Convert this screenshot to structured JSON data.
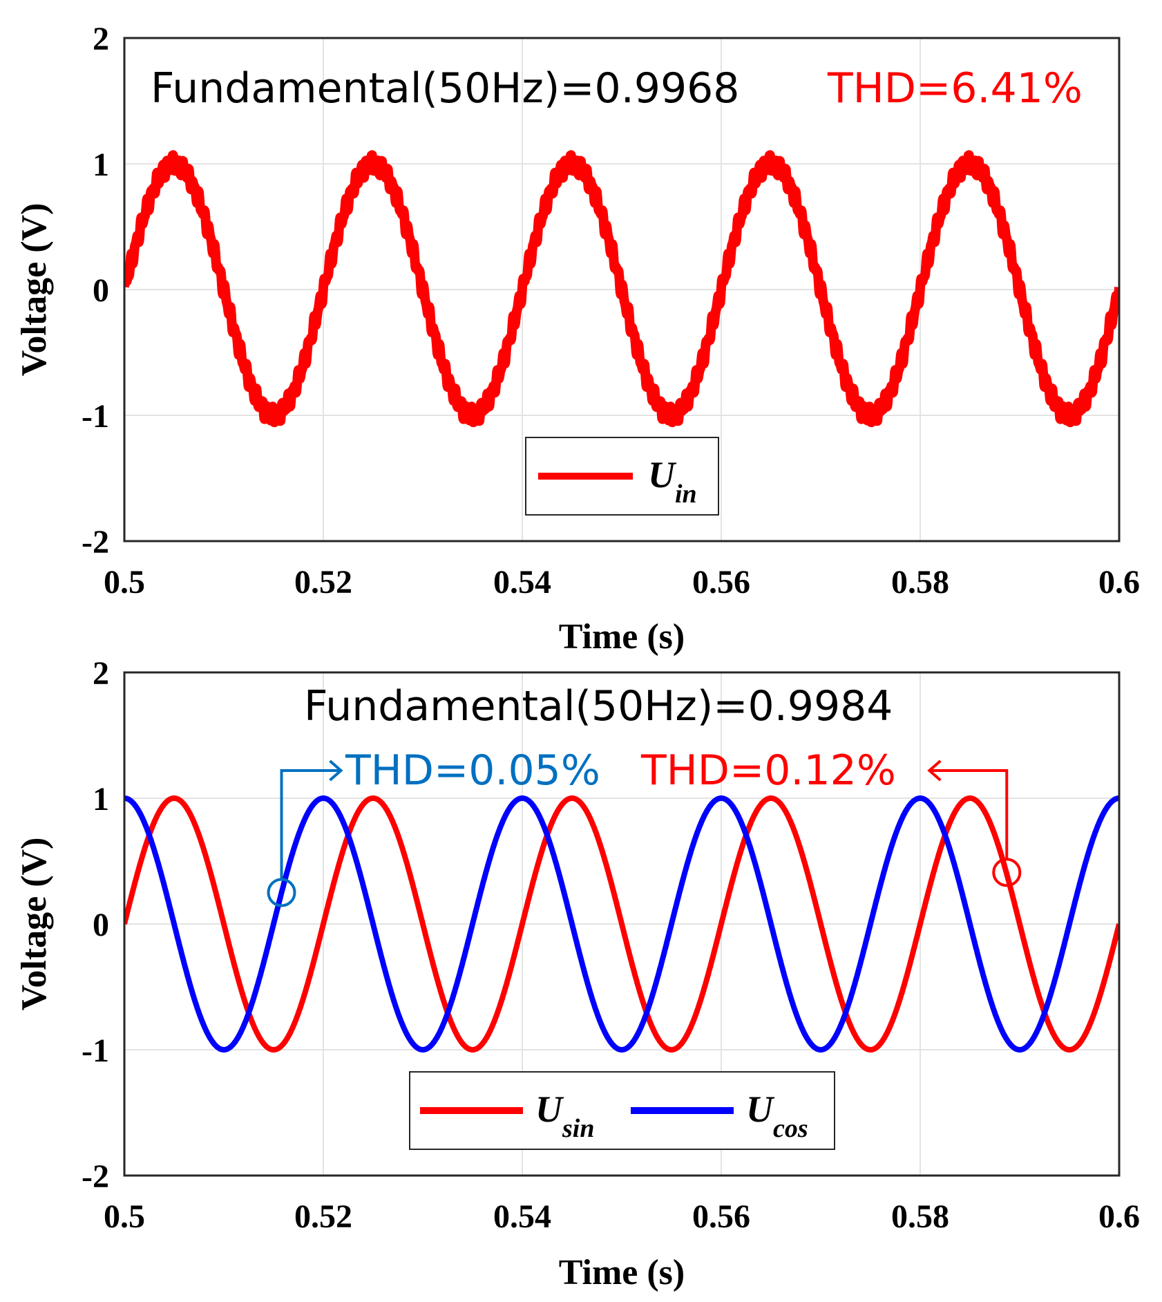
{
  "chart_data": [
    {
      "type": "line",
      "xlabel": "Time (s)",
      "ylabel": "Voltage (V)",
      "xlim": [
        0.5,
        0.6
      ],
      "ylim": [
        -2,
        2
      ],
      "xticks": [
        "0.5",
        "0.52",
        "0.54",
        "0.56",
        "0.58",
        "0.6"
      ],
      "yticks": [
        "2",
        "1",
        "0",
        "-1",
        "-2"
      ],
      "grid": true,
      "legend_position": "bottom-center",
      "series": [
        {
          "name": "U",
          "subscript": "in",
          "color": "#ff0000",
          "function": "sin",
          "frequency_hz": 50,
          "amplitude": 1.0,
          "noisy": true
        }
      ],
      "annotations": {
        "fundamental": "Fundamental(50Hz)=0.9968",
        "thd": "THD=6.41%",
        "thd_color": "#ff0000"
      }
    },
    {
      "type": "line",
      "xlabel": "Time (s)",
      "ylabel": "Voltage (V)",
      "xlim": [
        0.5,
        0.6
      ],
      "ylim": [
        -2,
        2
      ],
      "xticks": [
        "0.5",
        "0.52",
        "0.54",
        "0.56",
        "0.58",
        "0.6"
      ],
      "yticks": [
        "2",
        "1",
        "0",
        "-1",
        "-2"
      ],
      "grid": true,
      "legend_position": "bottom-center",
      "series": [
        {
          "name": "U",
          "subscript": "sin",
          "color": "#ff0000",
          "function": "sin",
          "frequency_hz": 50,
          "amplitude": 1.0,
          "noisy": false
        },
        {
          "name": "U",
          "subscript": "cos",
          "color": "#0000ff",
          "function": "cos",
          "frequency_hz": 50,
          "amplitude": 1.0,
          "noisy": false
        }
      ],
      "annotations": {
        "fundamental": "Fundamental(50Hz)=0.9984",
        "thd_blue": "THD=0.05%",
        "thd_blue_color": "#0070c0",
        "thd_red": "THD=0.12%",
        "thd_red_color": "#ff0000",
        "circle_blue_point": [
          0.5158,
          0.25
        ],
        "circle_red_point": [
          0.5887,
          0.41
        ]
      }
    }
  ]
}
